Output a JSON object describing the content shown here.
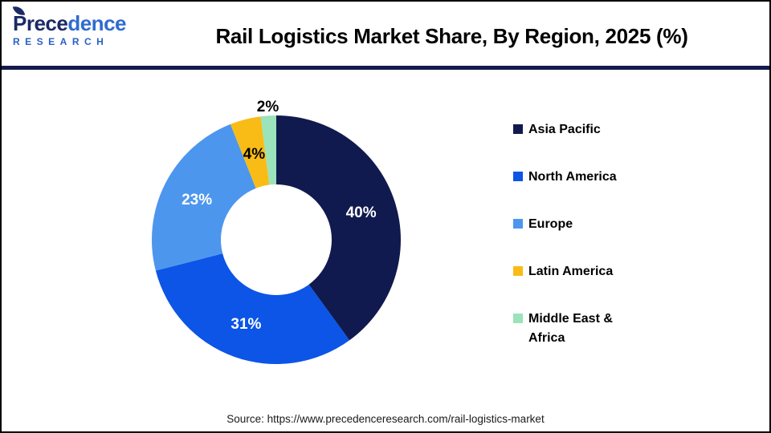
{
  "header": {
    "logo": {
      "word_part1": "Prece",
      "word_part2": "dence",
      "subtitle": "RESEARCH",
      "leaf_icon_color": "#1B2A66"
    },
    "title": "Rail Logistics Market Share, By Region, 2025 (%)"
  },
  "chart_data": {
    "type": "pie",
    "subtype": "donut",
    "title": "Rail Logistics Market Share, By Region, 2025 (%)",
    "unit": "%",
    "start_angle_deg": 0,
    "direction": "clockwise",
    "legend_position": "right",
    "categories": [
      "Asia Pacific",
      "North America",
      "Europe",
      "Latin America",
      "Middle East & Africa"
    ],
    "values": [
      40,
      31,
      23,
      4,
      2
    ],
    "slices": [
      {
        "name": "Asia Pacific",
        "value": 40,
        "label": "40%",
        "color": "#111A4E",
        "label_color": "#FFFFFF",
        "label_placement": "inside"
      },
      {
        "name": "North America",
        "value": 31,
        "label": "31%",
        "color": "#0C55E6",
        "label_color": "#FFFFFF",
        "label_placement": "inside"
      },
      {
        "name": "Europe",
        "value": 23,
        "label": "23%",
        "color": "#4D96EE",
        "label_color": "#FFFFFF",
        "label_placement": "inside"
      },
      {
        "name": "Latin America",
        "value": 4,
        "label": "4%",
        "color": "#F9BC16",
        "label_color": "#000000",
        "label_placement": "inside"
      },
      {
        "name": "Middle East & Africa",
        "value": 2,
        "label": "2%",
        "color": "#9AE3BB",
        "label_color": "#000000",
        "label_placement": "outside"
      }
    ]
  },
  "divider_color": "#131B4E",
  "footer": {
    "source": "Source: https://www.precedenceresearch.com/rail-logistics-market"
  }
}
